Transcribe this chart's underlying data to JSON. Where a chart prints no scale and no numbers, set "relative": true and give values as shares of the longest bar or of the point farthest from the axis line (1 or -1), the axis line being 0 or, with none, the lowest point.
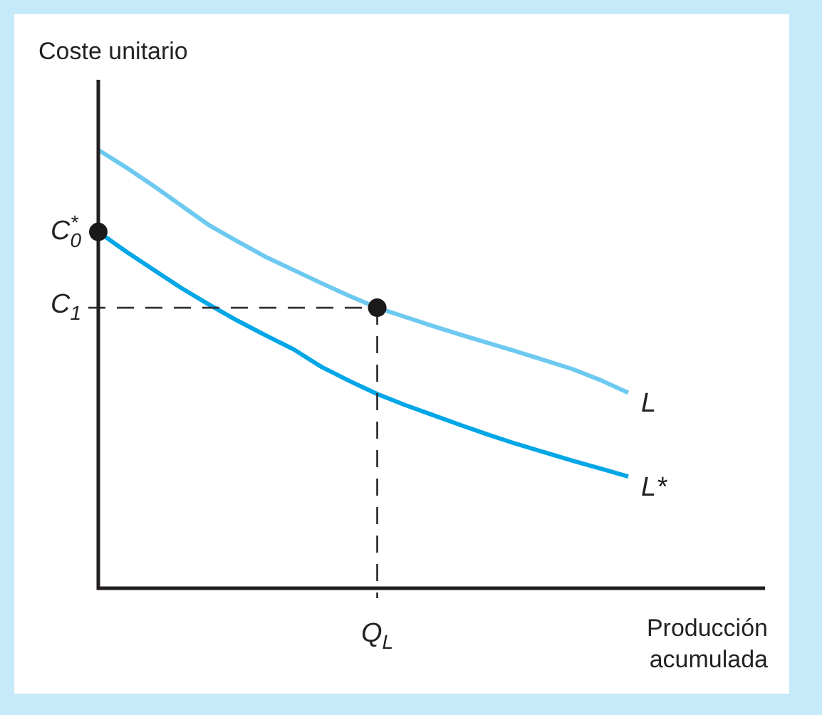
{
  "chart_data": {
    "type": "line",
    "relative": true,
    "ylabel": "Coste unitario",
    "xlabel": "Producción acumulada",
    "categories": [
      null,
      null,
      null,
      null,
      null,
      null,
      null,
      null,
      null,
      null,
      null,
      null,
      null,
      null,
      null,
      null,
      null,
      null,
      null,
      null
    ],
    "series": [
      {
        "name": "L",
        "color": "#6dc9f0",
        "values": [
          1,
          0.96,
          0.917,
          0.872,
          0.827,
          0.791,
          0.756,
          0.726,
          0.696,
          0.667,
          0.64,
          0.619,
          0.598,
          0.578,
          0.559,
          0.54,
          0.52,
          0.5,
          0.475,
          0.446
        ]
      },
      {
        "name": "L*",
        "color": "#00a6e6",
        "values": [
          0.813,
          0.768,
          0.726,
          0.684,
          0.646,
          0.61,
          0.577,
          0.545,
          0.505,
          0.473,
          0.443,
          0.418,
          0.395,
          0.372,
          0.35,
          0.329,
          0.31,
          0.291,
          0.273,
          0.255
        ]
      }
    ],
    "ref_lines": [
      {
        "axis": "y",
        "value": 0.64,
        "label": "C$_{1}$",
        "color": "#333333",
        "line_style": "dashed"
      }
    ],
    "annotations": [
      "C$^{*}$$_{0}$",
      "Q$_{L}$"
    ],
    "legend": false,
    "marker": "none",
    "line_style": "solid"
  }
}
